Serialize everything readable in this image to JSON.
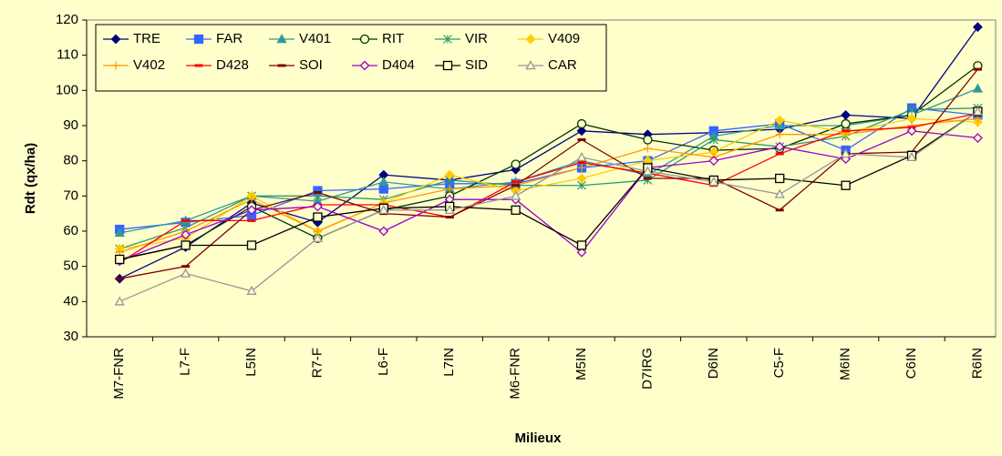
{
  "chart_data": {
    "type": "line",
    "x_label": "Milieux",
    "y_label": "Rdt (qx/ha)",
    "categories": [
      "M7-FNR",
      "L7-F",
      "L5IN",
      "R7-F",
      "L6-F",
      "L7IN",
      "M6-FNR",
      "M5IN",
      "D7IRG",
      "D6IN",
      "C5-F",
      "M6IN",
      "C6IN",
      "R6IN"
    ],
    "ylim": [
      30,
      120
    ],
    "yticks": [
      30,
      40,
      50,
      60,
      70,
      80,
      90,
      100,
      110,
      120
    ],
    "grid": false,
    "legend": "top-left",
    "series": [
      {
        "name": "TRE",
        "color": "#000080",
        "marker": "diamond",
        "values": [
          46.5,
          55.5,
          68,
          62.5,
          76,
          74.5,
          77.5,
          88.5,
          87.5,
          88,
          89,
          93,
          92,
          118
        ]
      },
      {
        "name": "FAR",
        "color": "#3366ff",
        "marker": "square",
        "values": [
          60.5,
          62.5,
          64.5,
          71.5,
          72,
          73.5,
          73.5,
          78,
          80,
          88.5,
          90.5,
          83,
          95,
          93
        ]
      },
      {
        "name": "V401",
        "color": "#339999",
        "marker": "triangle",
        "values": [
          59.5,
          63,
          70,
          68.5,
          74,
          72,
          74,
          80,
          76,
          87,
          90,
          90,
          93,
          100.5
        ]
      },
      {
        "name": "RIT",
        "color": "#003300",
        "marker": "circle-open",
        "values": [
          52,
          56,
          67,
          58,
          66,
          70,
          79,
          90.5,
          86,
          83,
          83.5,
          90.5,
          93,
          107
        ]
      },
      {
        "name": "VIR",
        "color": "#339966",
        "marker": "star",
        "values": [
          55,
          61,
          70,
          70,
          69,
          74.5,
          73,
          73,
          74.5,
          86,
          84,
          87,
          94.5,
          95
        ]
      },
      {
        "name": "V409",
        "color": "#ffcc00",
        "marker": "diamond",
        "values": [
          55,
          58,
          70,
          60,
          68,
          76,
          71.5,
          75,
          80,
          82.5,
          91.5,
          88,
          92,
          91
        ]
      },
      {
        "name": "V402",
        "color": "#ff9900",
        "marker": "plus",
        "values": [
          54,
          60,
          69,
          60,
          68,
          72,
          73,
          78,
          83.5,
          81,
          87.5,
          87.5,
          90,
          92
        ]
      },
      {
        "name": "D428",
        "color": "#ff0000",
        "marker": "dash",
        "values": [
          51,
          63,
          63,
          67.5,
          67.5,
          64,
          74,
          79.5,
          76.5,
          73,
          82,
          88.5,
          89.5,
          93.5
        ]
      },
      {
        "name": "SOI",
        "color": "#800000",
        "marker": "dash",
        "values": [
          46.5,
          50,
          66,
          71,
          65,
          64,
          73,
          86,
          75,
          75,
          66,
          82,
          82.5,
          106
        ]
      },
      {
        "name": "D404",
        "color": "#9900cc",
        "marker": "diamond-open",
        "values": [
          51.5,
          59,
          66,
          67,
          60,
          69,
          69,
          54,
          78,
          80,
          84,
          80.5,
          88.5,
          86.5
        ]
      },
      {
        "name": "SID",
        "color": "#000000",
        "marker": "square-open",
        "values": [
          52,
          56,
          56,
          64,
          66.5,
          67,
          66,
          56,
          78,
          74.5,
          75,
          73,
          81.5,
          94
        ]
      },
      {
        "name": "CAR",
        "color": "#969696",
        "marker": "triangle-open",
        "values": [
          40,
          48,
          43,
          58,
          66,
          66,
          70,
          81,
          77,
          74,
          70.5,
          82,
          81,
          94
        ]
      }
    ]
  }
}
